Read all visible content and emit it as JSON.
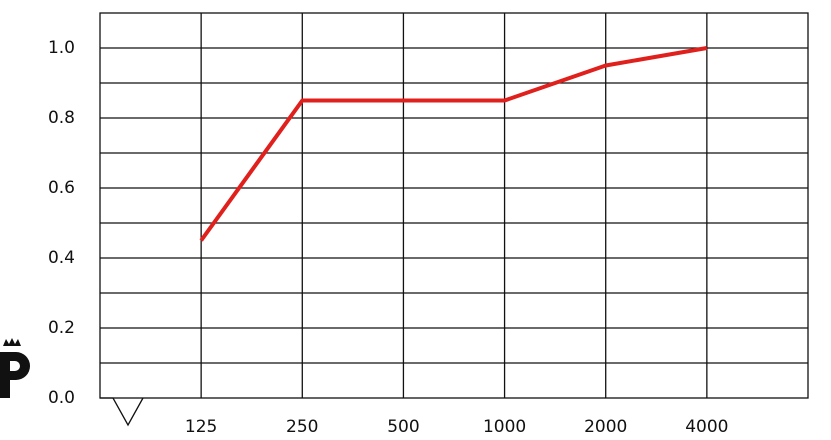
{
  "chart_data": {
    "type": "line",
    "categories": [
      "125",
      "250",
      "500",
      "1000",
      "2000",
      "4000"
    ],
    "series": [
      {
        "color": "#e0201c",
        "values": [
          0.45,
          0.85,
          0.85,
          0.85,
          0.95,
          1.0
        ]
      }
    ],
    "ylim": [
      0,
      1.1
    ],
    "yticks": [
      {
        "value": 0,
        "label": "0.0"
      },
      {
        "value": 0.2,
        "label": "0.2"
      },
      {
        "value": 0.4,
        "label": "0.4"
      },
      {
        "value": 0.6,
        "label": "0.6"
      },
      {
        "value": 0.8,
        "label": "0.8"
      },
      {
        "value": 1.0,
        "label": "1.0"
      }
    ],
    "minor_yticks": [
      0.1,
      0.3,
      0.5,
      0.7,
      0.9
    ],
    "grid": true
  }
}
